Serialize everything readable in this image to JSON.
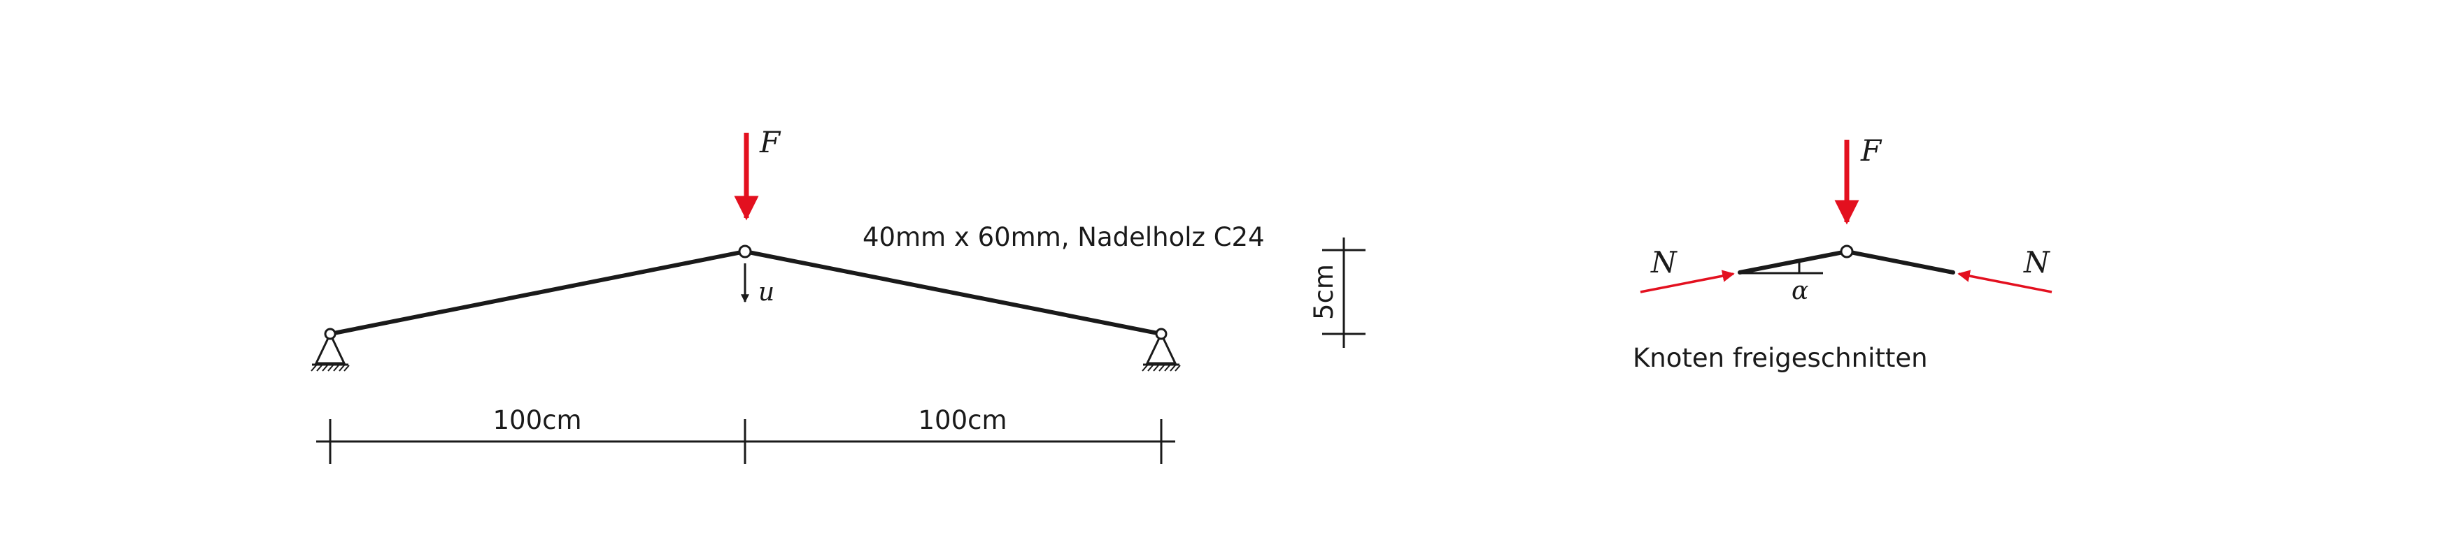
{
  "colors": {
    "member": "#1a1a1a",
    "force": "#e3101f",
    "background": "#ffffff"
  },
  "labels": {
    "load_left": "F",
    "displacement": "u",
    "cross_section": "40mm x 60mm, Nadelholz C24",
    "span_left": "100cm",
    "span_right": "100cm",
    "rise": "5cm",
    "load_right": "F",
    "normal_left": "N",
    "normal_right": "N",
    "angle": "α",
    "free_body_caption": "Knoten freigeschnitten"
  }
}
